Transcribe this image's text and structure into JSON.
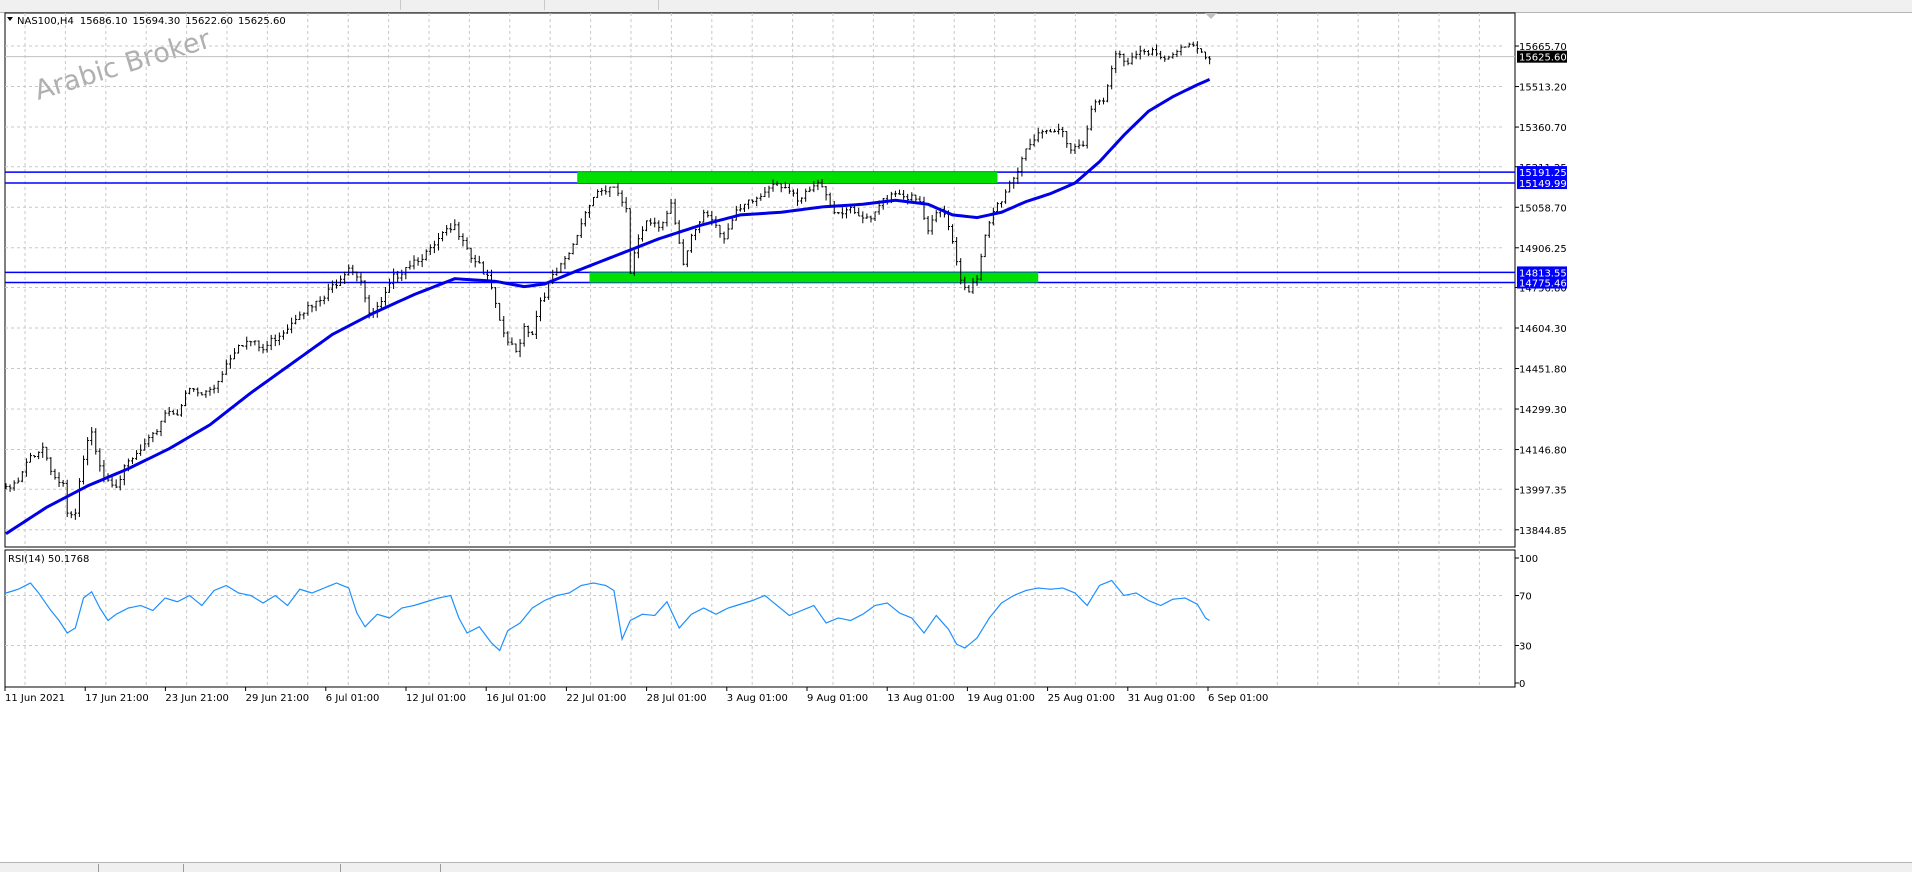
{
  "symbol": "NAS100,H4",
  "ohlc": {
    "open": "15686.10",
    "high": "15694.30",
    "low": "15622.60",
    "close": "15625.60"
  },
  "watermark": "Arabic Broker",
  "colors": {
    "grid": "#c8c8c8",
    "candle": "#000000",
    "ma": "#0000e6",
    "level_line": "#0000ff",
    "zone": "#00e000",
    "rsi": "#1e90ff",
    "price_tag": "#000000",
    "level_tag": "#0000ff"
  },
  "rsi_label": "RSI(14) 50.1768",
  "chart_data": {
    "type": "line",
    "main": {
      "ylim": [
        13780,
        15790
      ],
      "y_ticks": [
        "13844.85",
        "13997.35",
        "14146.80",
        "14299.30",
        "14451.80",
        "14604.30",
        "14756.80",
        "14906.25",
        "15058.70",
        "15211.25",
        "15360.70",
        "15513.20",
        "15665.70"
      ],
      "x_ticks": [
        "11 Jun 2021",
        "17 Jun 21:00",
        "23 Jun 21:00",
        "29 Jun 21:00",
        "6 Jul 01:00",
        "12 Jul 01:00",
        "16 Jul 01:00",
        "22 Jul 01:00",
        "28 Jul 01:00",
        "3 Aug 01:00",
        "9 Aug 01:00",
        "13 Aug 01:00",
        "19 Aug 01:00",
        "25 Aug 01:00",
        "31 Aug 01:00",
        "6 Sep 01:00"
      ],
      "current_price": "15625.60",
      "price_anchors": [
        [
          0,
          14000
        ],
        [
          3,
          14030
        ],
        [
          6,
          14130
        ],
        [
          9,
          14165
        ],
        [
          12,
          14050
        ],
        [
          14,
          14020
        ],
        [
          15,
          13900
        ],
        [
          17,
          13905
        ],
        [
          18,
          14030
        ],
        [
          20,
          14180
        ],
        [
          21,
          14210
        ],
        [
          24,
          14060
        ],
        [
          27,
          14030
        ],
        [
          30,
          14100
        ],
        [
          33,
          14150
        ],
        [
          36,
          14200
        ],
        [
          39,
          14300
        ],
        [
          42,
          14300
        ],
        [
          45,
          14380
        ],
        [
          48,
          14360
        ],
        [
          51,
          14390
        ],
        [
          54,
          14480
        ],
        [
          57,
          14560
        ],
        [
          60,
          14560
        ],
        [
          63,
          14530
        ],
        [
          66,
          14580
        ],
        [
          69,
          14620
        ],
        [
          72,
          14680
        ],
        [
          75,
          14690
        ],
        [
          78,
          14725
        ],
        [
          81,
          14790
        ],
        [
          84,
          14850
        ],
        [
          87,
          14800
        ],
        [
          89,
          14655
        ],
        [
          92,
          14700
        ],
        [
          95,
          14800
        ],
        [
          98,
          14850
        ],
        [
          101,
          14880
        ],
        [
          104,
          14900
        ],
        [
          107,
          14960
        ],
        [
          110,
          14990
        ],
        [
          112,
          14960
        ],
        [
          114,
          14885
        ],
        [
          116,
          14860
        ],
        [
          119,
          14760
        ],
        [
          121,
          14625
        ],
        [
          123,
          14560
        ],
        [
          125,
          14520
        ],
        [
          127,
          14620
        ],
        [
          129,
          14600
        ],
        [
          131,
          14720
        ],
        [
          134,
          14800
        ],
        [
          137,
          14860
        ],
        [
          139,
          14920
        ],
        [
          141,
          15010
        ],
        [
          143,
          15090
        ],
        [
          145,
          15130
        ],
        [
          148,
          15135
        ],
        [
          150,
          15120
        ],
        [
          152,
          15050
        ],
        [
          153,
          14810
        ],
        [
          155,
          14950
        ],
        [
          157,
          15030
        ],
        [
          160,
          15000
        ],
        [
          163,
          15080
        ],
        [
          166,
          14840
        ],
        [
          168,
          14950
        ],
        [
          171,
          15050
        ],
        [
          173,
          15030
        ],
        [
          176,
          14960
        ],
        [
          179,
          15040
        ],
        [
          182,
          15080
        ],
        [
          185,
          15110
        ],
        [
          188,
          15170
        ],
        [
          191,
          15150
        ],
        [
          194,
          15080
        ],
        [
          197,
          15130
        ],
        [
          200,
          15160
        ],
        [
          203,
          15050
        ],
        [
          206,
          15060
        ],
        [
          209,
          15030
        ],
        [
          212,
          15010
        ],
        [
          215,
          15100
        ],
        [
          218,
          15130
        ],
        [
          221,
          15110
        ],
        [
          224,
          15080
        ],
        [
          226,
          14970
        ],
        [
          228,
          15040
        ],
        [
          230,
          15050
        ],
        [
          232,
          14950
        ],
        [
          234,
          14800
        ],
        [
          236,
          14760
        ],
        [
          238,
          14790
        ],
        [
          240,
          14950
        ],
        [
          242,
          15050
        ],
        [
          244,
          15100
        ],
        [
          246,
          15160
        ],
        [
          248,
          15210
        ],
        [
          250,
          15300
        ],
        [
          253,
          15330
        ],
        [
          256,
          15345
        ],
        [
          259,
          15360
        ],
        [
          261,
          15290
        ],
        [
          264,
          15310
        ],
        [
          266,
          15450
        ],
        [
          269,
          15460
        ],
        [
          272,
          15640
        ],
        [
          275,
          15620
        ],
        [
          278,
          15670
        ],
        [
          281,
          15655
        ],
        [
          284,
          15610
        ],
        [
          287,
          15650
        ],
        [
          290,
          15690
        ],
        [
          293,
          15660
        ],
        [
          295,
          15626
        ]
      ],
      "ma_anchors": [
        [
          0,
          13830
        ],
        [
          10,
          13930
        ],
        [
          20,
          14010
        ],
        [
          30,
          14075
        ],
        [
          40,
          14150
        ],
        [
          50,
          14240
        ],
        [
          60,
          14360
        ],
        [
          70,
          14470
        ],
        [
          80,
          14580
        ],
        [
          90,
          14660
        ],
        [
          100,
          14730
        ],
        [
          110,
          14790
        ],
        [
          120,
          14780
        ],
        [
          127,
          14760
        ],
        [
          132,
          14770
        ],
        [
          140,
          14820
        ],
        [
          150,
          14880
        ],
        [
          160,
          14940
        ],
        [
          170,
          14990
        ],
        [
          180,
          15030
        ],
        [
          190,
          15040
        ],
        [
          200,
          15060
        ],
        [
          210,
          15070
        ],
        [
          218,
          15085
        ],
        [
          226,
          15070
        ],
        [
          232,
          15030
        ],
        [
          238,
          15020
        ],
        [
          244,
          15040
        ],
        [
          250,
          15080
        ],
        [
          256,
          15110
        ],
        [
          262,
          15150
        ],
        [
          268,
          15230
        ],
        [
          274,
          15330
        ],
        [
          280,
          15420
        ],
        [
          286,
          15475
        ],
        [
          292,
          15520
        ],
        [
          295,
          15540
        ]
      ],
      "levels": [
        {
          "label": "15191.25",
          "value": 15191.25
        },
        {
          "label": "15149.99",
          "value": 15149.99
        },
        {
          "label": "14813.55",
          "value": 14813.55
        },
        {
          "label": "14775.46",
          "value": 14775.46
        }
      ],
      "zones": [
        {
          "from_bar": 140,
          "to_bar": 243,
          "low": 15149.99,
          "high": 15191.25
        },
        {
          "from_bar": 143,
          "to_bar": 253,
          "low": 14775.46,
          "high": 14813.55
        }
      ]
    },
    "rsi": {
      "ylim": [
        0,
        100
      ],
      "y_ticks": [
        "100",
        "70",
        "30",
        "0"
      ],
      "anchors": [
        [
          0,
          72
        ],
        [
          3,
          75
        ],
        [
          6,
          80
        ],
        [
          8,
          72
        ],
        [
          11,
          58
        ],
        [
          13,
          50
        ],
        [
          15,
          40
        ],
        [
          17,
          44
        ],
        [
          19,
          68
        ],
        [
          21,
          73
        ],
        [
          23,
          60
        ],
        [
          25,
          50
        ],
        [
          27,
          55
        ],
        [
          30,
          60
        ],
        [
          33,
          62
        ],
        [
          36,
          58
        ],
        [
          39,
          68
        ],
        [
          42,
          65
        ],
        [
          45,
          70
        ],
        [
          48,
          62
        ],
        [
          51,
          74
        ],
        [
          54,
          78
        ],
        [
          57,
          72
        ],
        [
          60,
          70
        ],
        [
          63,
          64
        ],
        [
          66,
          70
        ],
        [
          69,
          62
        ],
        [
          72,
          75
        ],
        [
          75,
          72
        ],
        [
          78,
          76
        ],
        [
          81,
          80
        ],
        [
          84,
          76
        ],
        [
          86,
          56
        ],
        [
          88,
          45
        ],
        [
          91,
          55
        ],
        [
          94,
          52
        ],
        [
          97,
          60
        ],
        [
          100,
          62
        ],
        [
          103,
          65
        ],
        [
          106,
          68
        ],
        [
          109,
          70
        ],
        [
          111,
          52
        ],
        [
          113,
          40
        ],
        [
          116,
          45
        ],
        [
          119,
          32
        ],
        [
          121,
          26
        ],
        [
          123,
          42
        ],
        [
          126,
          48
        ],
        [
          129,
          60
        ],
        [
          132,
          66
        ],
        [
          135,
          70
        ],
        [
          138,
          72
        ],
        [
          141,
          78
        ],
        [
          144,
          80
        ],
        [
          147,
          78
        ],
        [
          149,
          74
        ],
        [
          151,
          35
        ],
        [
          153,
          50
        ],
        [
          156,
          55
        ],
        [
          159,
          54
        ],
        [
          162,
          65
        ],
        [
          165,
          44
        ],
        [
          168,
          55
        ],
        [
          171,
          60
        ],
        [
          174,
          55
        ],
        [
          177,
          60
        ],
        [
          180,
          63
        ],
        [
          183,
          66
        ],
        [
          186,
          70
        ],
        [
          189,
          62
        ],
        [
          192,
          54
        ],
        [
          195,
          58
        ],
        [
          198,
          62
        ],
        [
          201,
          48
        ],
        [
          204,
          52
        ],
        [
          207,
          50
        ],
        [
          210,
          55
        ],
        [
          213,
          62
        ],
        [
          216,
          64
        ],
        [
          219,
          56
        ],
        [
          222,
          52
        ],
        [
          225,
          40
        ],
        [
          228,
          54
        ],
        [
          231,
          43
        ],
        [
          233,
          31
        ],
        [
          235,
          28
        ],
        [
          238,
          36
        ],
        [
          241,
          52
        ],
        [
          244,
          64
        ],
        [
          247,
          70
        ],
        [
          250,
          74
        ],
        [
          253,
          76
        ],
        [
          256,
          75
        ],
        [
          259,
          76
        ],
        [
          262,
          72
        ],
        [
          265,
          62
        ],
        [
          268,
          78
        ],
        [
          271,
          82
        ],
        [
          274,
          70
        ],
        [
          277,
          72
        ],
        [
          280,
          66
        ],
        [
          283,
          62
        ],
        [
          286,
          67
        ],
        [
          289,
          68
        ],
        [
          292,
          63
        ],
        [
          294,
          52
        ],
        [
          295,
          50
        ]
      ]
    }
  }
}
